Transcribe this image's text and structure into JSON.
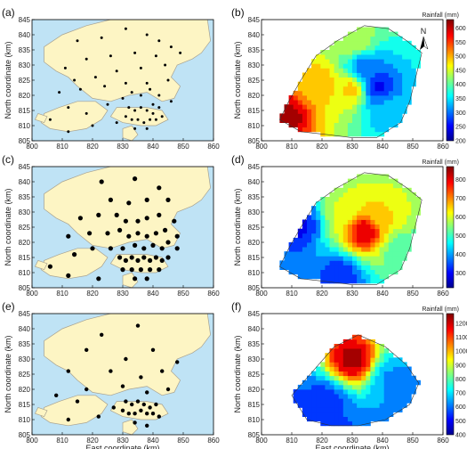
{
  "figure": {
    "xlabel": "East coordinate (km)",
    "ylabel": "North coordinate (km)",
    "colorbar_title": "Rainfall (mm)",
    "north_label": "N"
  },
  "colors": {
    "sea": "#bfe3f5",
    "land": "#fdf5c4",
    "coast": "#a8a290",
    "station": "#000000"
  },
  "chart_data": [
    {
      "panel": "(a)",
      "type": "scatter",
      "xlim": [
        800,
        860
      ],
      "ylim": [
        805,
        845
      ],
      "xticks": [
        "800",
        "810",
        "820",
        "830",
        "840",
        "850",
        "860"
      ],
      "yticks": [
        "805",
        "810",
        "815",
        "820",
        "825",
        "830",
        "835",
        "840",
        "845"
      ],
      "points": [
        [
          815,
          838
        ],
        [
          823,
          839
        ],
        [
          831,
          842
        ],
        [
          838,
          840
        ],
        [
          842,
          838
        ],
        [
          846,
          836
        ],
        [
          811,
          829
        ],
        [
          818,
          832
        ],
        [
          826,
          833
        ],
        [
          834,
          834
        ],
        [
          841,
          833
        ],
        [
          849,
          834
        ],
        [
          814,
          825
        ],
        [
          821,
          826
        ],
        [
          828,
          828
        ],
        [
          836,
          829
        ],
        [
          844,
          830
        ],
        [
          809,
          821
        ],
        [
          816,
          822
        ],
        [
          824,
          823
        ],
        [
          831,
          824
        ],
        [
          838,
          824
        ],
        [
          845,
          825
        ],
        [
          806,
          812
        ],
        [
          812,
          816
        ],
        [
          818,
          814
        ],
        [
          825,
          817
        ],
        [
          830,
          819
        ],
        [
          833,
          821
        ],
        [
          836,
          820
        ],
        [
          839,
          822
        ],
        [
          842,
          820
        ],
        [
          832,
          816
        ],
        [
          834,
          815
        ],
        [
          836,
          816
        ],
        [
          838,
          815
        ],
        [
          840,
          814
        ],
        [
          842,
          816
        ],
        [
          831,
          813
        ],
        [
          833,
          812
        ],
        [
          835,
          812
        ],
        [
          837,
          811
        ],
        [
          839,
          812
        ],
        [
          841,
          812
        ],
        [
          843,
          813
        ],
        [
          834,
          809
        ],
        [
          838,
          809
        ],
        [
          828,
          811
        ],
        [
          820,
          810
        ],
        [
          812,
          808
        ],
        [
          846,
          818
        ],
        [
          840,
          817
        ]
      ]
    },
    {
      "panel": "(b)",
      "type": "heatmap",
      "xlim": [
        800,
        860
      ],
      "ylim": [
        805,
        845
      ],
      "xticks": [
        "800",
        "810",
        "820",
        "830",
        "840",
        "850",
        "860"
      ],
      "yticks": [
        "805",
        "810",
        "815",
        "820",
        "825",
        "830",
        "835",
        "840",
        "845"
      ],
      "colorbar_ticks": [
        "200",
        "250",
        "300",
        "350",
        "400",
        "450",
        "500",
        "550",
        "600"
      ],
      "clim": [
        200,
        630
      ],
      "peaks": [
        {
          "x": 808,
          "y": 813,
          "value": 620
        },
        {
          "x": 819,
          "y": 824,
          "value": 500
        },
        {
          "x": 830,
          "y": 822,
          "value": 490
        },
        {
          "x": 838,
          "y": 823,
          "value": 250
        },
        {
          "x": 834,
          "y": 829,
          "value": 300
        },
        {
          "x": 842,
          "y": 816,
          "value": 330
        },
        {
          "x": 831,
          "y": 838,
          "value": 440
        }
      ],
      "background": 420
    },
    {
      "panel": "(c)",
      "type": "scatter",
      "xlim": [
        800,
        860
      ],
      "ylim": [
        805,
        845
      ],
      "xticks": [
        "800",
        "810",
        "820",
        "830",
        "840",
        "850",
        "860"
      ],
      "yticks": [
        "805",
        "810",
        "815",
        "820",
        "825",
        "830",
        "835",
        "840",
        "845"
      ],
      "points": [
        [
          823,
          840
        ],
        [
          834,
          841
        ],
        [
          842,
          838
        ],
        [
          826,
          834
        ],
        [
          832,
          833
        ],
        [
          838,
          834
        ],
        [
          845,
          834
        ],
        [
          816,
          828
        ],
        [
          822,
          829
        ],
        [
          828,
          829
        ],
        [
          831,
          827
        ],
        [
          835,
          827
        ],
        [
          838,
          828
        ],
        [
          842,
          829
        ],
        [
          847,
          827
        ],
        [
          812,
          822
        ],
        [
          819,
          823
        ],
        [
          825,
          823
        ],
        [
          829,
          824
        ],
        [
          832,
          822
        ],
        [
          835,
          823
        ],
        [
          838,
          822
        ],
        [
          841,
          823
        ],
        [
          844,
          824
        ],
        [
          848,
          822
        ],
        [
          806,
          812
        ],
        [
          814,
          816
        ],
        [
          820,
          818
        ],
        [
          826,
          818
        ],
        [
          830,
          818
        ],
        [
          834,
          819
        ],
        [
          837,
          818
        ],
        [
          840,
          819
        ],
        [
          843,
          818
        ],
        [
          829,
          815
        ],
        [
          831,
          814
        ],
        [
          833,
          815
        ],
        [
          835,
          814
        ],
        [
          837,
          815
        ],
        [
          839,
          814
        ],
        [
          841,
          815
        ],
        [
          843,
          814
        ],
        [
          845,
          815
        ],
        [
          830,
          811
        ],
        [
          833,
          811
        ],
        [
          836,
          811
        ],
        [
          839,
          811
        ],
        [
          842,
          811
        ],
        [
          834,
          808
        ],
        [
          838,
          808
        ],
        [
          822,
          808
        ],
        [
          812,
          809
        ],
        [
          848,
          818
        ],
        [
          845,
          820
        ]
      ]
    },
    {
      "panel": "(d)",
      "type": "heatmap",
      "xlim": [
        800,
        860
      ],
      "ylim": [
        805,
        845
      ],
      "xticks": [
        "800",
        "810",
        "820",
        "830",
        "840",
        "850",
        "860"
      ],
      "yticks": [
        "805",
        "810",
        "815",
        "820",
        "825",
        "830",
        "835",
        "840",
        "845"
      ],
      "colorbar_ticks": [
        "300",
        "400",
        "500",
        "600",
        "700",
        "800"
      ],
      "clim": [
        220,
        870
      ],
      "peaks": [
        {
          "x": 834,
          "y": 824,
          "value": 820
        },
        {
          "x": 840,
          "y": 829,
          "value": 640
        },
        {
          "x": 828,
          "y": 830,
          "value": 600
        },
        {
          "x": 846,
          "y": 818,
          "value": 520
        },
        {
          "x": 812,
          "y": 826,
          "value": 300
        },
        {
          "x": 826,
          "y": 809,
          "value": 330
        }
      ],
      "background": 430
    },
    {
      "panel": "(e)",
      "type": "scatter",
      "xlim": [
        800,
        860
      ],
      "ylim": [
        805,
        845
      ],
      "xticks": [
        "800",
        "810",
        "820",
        "830",
        "840",
        "850",
        "860"
      ],
      "yticks": [
        "805",
        "810",
        "815",
        "820",
        "825",
        "830",
        "835",
        "840",
        "845"
      ],
      "points": [
        [
          823,
          838
        ],
        [
          835,
          841
        ],
        [
          818,
          833
        ],
        [
          831,
          830
        ],
        [
          840,
          833
        ],
        [
          848,
          829
        ],
        [
          812,
          826
        ],
        [
          826,
          826
        ],
        [
          836,
          824
        ],
        [
          843,
          826
        ],
        [
          808,
          818
        ],
        [
          818,
          820
        ],
        [
          830,
          821
        ],
        [
          838,
          819
        ],
        [
          845,
          820
        ],
        [
          815,
          816
        ],
        [
          831,
          816
        ],
        [
          833,
          815
        ],
        [
          835,
          816
        ],
        [
          837,
          815
        ],
        [
          839,
          814
        ],
        [
          841,
          815
        ],
        [
          830,
          813
        ],
        [
          832,
          812
        ],
        [
          834,
          812
        ],
        [
          836,
          813
        ],
        [
          838,
          812
        ],
        [
          840,
          812
        ],
        [
          842,
          811
        ],
        [
          834,
          809
        ],
        [
          838,
          808
        ],
        [
          822,
          811
        ],
        [
          812,
          810
        ],
        [
          827,
          814
        ]
      ]
    },
    {
      "panel": "(f)",
      "type": "heatmap",
      "xlim": [
        800,
        860
      ],
      "ylim": [
        805,
        845
      ],
      "xticks": [
        "800",
        "810",
        "820",
        "830",
        "840",
        "850",
        "860"
      ],
      "yticks": [
        "805",
        "810",
        "815",
        "820",
        "825",
        "830",
        "835",
        "840",
        "845"
      ],
      "colorbar_ticks": [
        "400",
        "500",
        "600",
        "700",
        "800",
        "900",
        "1000",
        "1100",
        "1200"
      ],
      "clim": [
        400,
        1270
      ],
      "peaks": [
        {
          "x": 830,
          "y": 830,
          "value": 1240
        },
        {
          "x": 843,
          "y": 823,
          "value": 640
        },
        {
          "x": 821,
          "y": 816,
          "value": 560
        }
      ],
      "background": 470
    }
  ]
}
